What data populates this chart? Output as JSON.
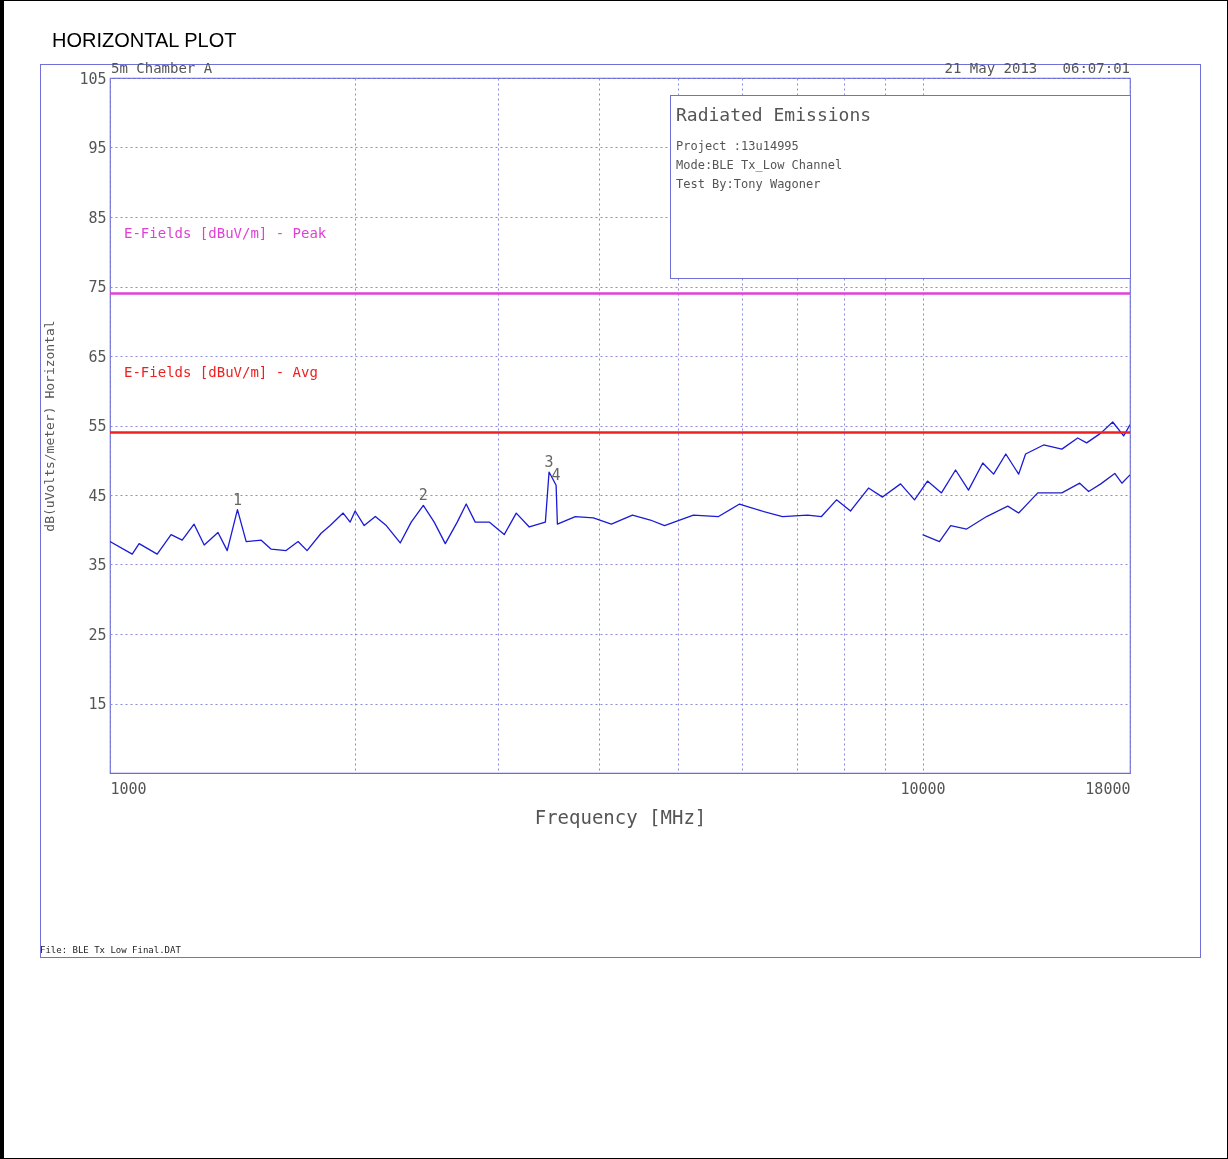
{
  "chart_data": {
    "type": "line",
    "title": "HORIZONTAL PLOT",
    "xlabel": "Frequency [MHz]",
    "ylabel": "dB(uVolts/meter) Horizontal",
    "log": "x",
    "grid": true,
    "xlim": [
      1000,
      18000
    ],
    "xticks": [
      1000,
      {
        "value": 2000,
        "label": null
      },
      {
        "value": 3000,
        "label": null
      },
      {
        "value": 4000,
        "label": null
      },
      {
        "value": 5000,
        "label": null
      },
      {
        "value": 6000,
        "label": null
      },
      {
        "value": 7000,
        "label": null
      },
      {
        "value": 8000,
        "label": null
      },
      {
        "value": 9000,
        "label": null
      },
      10000,
      18000
    ],
    "ylim": [
      5,
      105
    ],
    "yticks": [
      15,
      25,
      35,
      45,
      55,
      65,
      75,
      85,
      95,
      105
    ],
    "series": [
      {
        "color": "#1a1ad8",
        "x": [
          1000,
          1065,
          1086,
          1143,
          1189,
          1227,
          1269,
          1306,
          1358,
          1394,
          1435,
          1471,
          1535,
          1579,
          1647,
          1704,
          1748,
          1819,
          1866,
          1936,
          1975,
          2003,
          2055,
          2121,
          2188,
          2276,
          2348,
          2430,
          2506,
          2586,
          2675,
          2744,
          2815,
          2929,
          3056,
          3162,
          3281,
          3434,
          3470,
          3540,
          3553,
          3738,
          3934,
          4140,
          4395,
          4624,
          4813,
          5224,
          5609,
          5953,
          6336,
          6724,
          7218,
          7509,
          7836,
          8153,
          8580,
          8927,
          9395,
          9775,
          10140,
          10550,
          10980,
          11390,
          11860,
          12230,
          12660,
          13130,
          13390,
          14090,
          14840,
          15520,
          15920,
          16570,
          17140,
          17680,
          18000
        ],
        "values": [
          38.3,
          36.5,
          38.0,
          36.5,
          39.3,
          38.5,
          40.8,
          37.8,
          39.6,
          37.0,
          42.9,
          38.3,
          38.5,
          37.2,
          37.0,
          38.3,
          37.0,
          39.5,
          40.6,
          42.4,
          41.1,
          42.7,
          40.6,
          41.9,
          40.6,
          38.1,
          41.1,
          43.5,
          41.1,
          38.0,
          41.1,
          43.7,
          41.1,
          41.1,
          39.3,
          42.4,
          40.4,
          41.1,
          48.3,
          46.4,
          40.8,
          41.9,
          41.7,
          40.8,
          42.1,
          41.4,
          40.6,
          42.1,
          41.9,
          43.7,
          42.7,
          41.9,
          42.1,
          41.9,
          44.3,
          42.7,
          46.0,
          44.7,
          46.6,
          44.3,
          47.0,
          45.3,
          48.6,
          45.7,
          49.6,
          48.0,
          50.9,
          48.0,
          50.9,
          52.2,
          51.6,
          53.2,
          52.5,
          53.9,
          55.5,
          53.5,
          55.1
        ]
      },
      {
        "color": "#2020c8",
        "x": [
          10000,
          10490,
          10830,
          11330,
          11990,
          12730,
          13130,
          13860,
          14840,
          15610,
          16010,
          16570,
          17240,
          17590,
          18000
        ],
        "values": [
          39.3,
          38.3,
          40.6,
          40.1,
          41.9,
          43.4,
          42.4,
          45.3,
          45.3,
          46.7,
          45.5,
          46.6,
          48.1,
          46.7,
          47.9
        ]
      }
    ],
    "ref_lines": [
      {
        "axis": "y",
        "value": 74,
        "label": "E-Fields [dBuV/m] - Peak",
        "color": "#e040d8"
      },
      {
        "axis": "y",
        "value": 54,
        "label": "E-Fields [dBuV/m] - Avg",
        "color": "#f02020"
      }
    ],
    "annotations": [
      "5m Chamber A",
      "21 May 2013   06:07:01",
      "Radiated Emissions",
      "Project :13u14995",
      "Mode:BLE Tx_Low Channel",
      "Test By:Tony Wagoner",
      "File: BLE Tx Low Final.DAT",
      {
        "text": "1",
        "x": 1435,
        "y": 42.9
      },
      {
        "text": "2",
        "x": 2430,
        "y": 43.5
      },
      {
        "text": "3",
        "x": 3470,
        "y": 48.3
      },
      {
        "text": "4",
        "x": 3540,
        "y": 46.4
      }
    ]
  }
}
